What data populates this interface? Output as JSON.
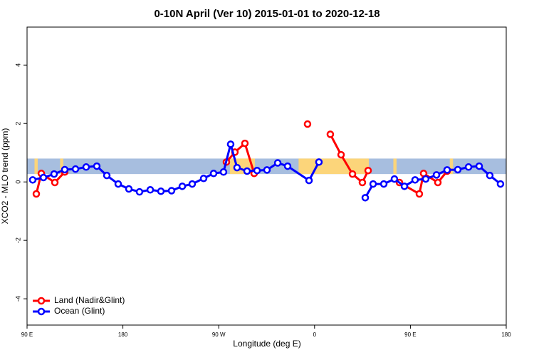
{
  "chart_data": {
    "type": "line",
    "title": "0-10N April (Ver 10)   2015-01-01 to 2020-12-18",
    "x_label": "Longitude (deg E)",
    "y_label": "XCO2 - MLO trend (ppm)",
    "xlim": [
      90,
      540
    ],
    "ylim": [
      -4.9,
      5.3
    ],
    "xticks": [
      {
        "value": 90,
        "label": "90 E"
      },
      {
        "value": 180,
        "label": "180"
      },
      {
        "value": 270,
        "label": "90 W"
      },
      {
        "value": 360,
        "label": "0"
      },
      {
        "value": 450,
        "label": "90 E"
      },
      {
        "value": 540,
        "label": "180"
      }
    ],
    "yticks": [
      -4,
      -2,
      0,
      2,
      4
    ],
    "band": [
      0.27,
      0.8
    ],
    "band_color": "#a7bedf",
    "land_color": "#fcd57a",
    "land_x_ranges": [
      [
        280.5,
        304
      ],
      [
        345,
        411
      ],
      [
        97,
        100
      ],
      [
        121,
        124
      ],
      [
        434,
        437
      ],
      [
        487,
        490
      ]
    ],
    "legend": "bottom-left",
    "series": [
      {
        "name": "Land (Nadir&Glint)",
        "color": "#ff0000",
        "x": [
          98.7,
          103.4,
          116.1,
          125.4,
          200,
          277.2,
          285.2,
          294.6,
          303.3,
          330,
          353.4,
          365,
          374.8,
          384.9,
          395.6,
          404.9,
          410.3,
          425,
          439.7,
          458.4,
          462.4,
          475.8,
          484.5
        ],
        "values": [
          -0.41,
          0.29,
          -0.02,
          0.34,
          null,
          0.68,
          1.02,
          1.32,
          0.29,
          null,
          1.98,
          null,
          1.63,
          0.93,
          0.27,
          -0.02,
          0.39,
          null,
          -0.02,
          -0.41,
          0.29,
          -0.02,
          0.37
        ]
      },
      {
        "name": "Ocean (Glint)",
        "color": "#0000ff",
        "x": [
          95.3,
          105.4,
          115.4,
          125.4,
          135.5,
          145.5,
          155.5,
          164.9,
          175.6,
          185.6,
          195.6,
          205.7,
          215.7,
          225.7,
          235.8,
          245.1,
          255.8,
          265.2,
          274.5,
          281.2,
          287.2,
          296.6,
          306.0,
          315.3,
          325.4,
          334.7,
          354.8,
          364.1,
          385,
          407.6,
          415.0,
          425.0,
          435.0,
          444.4,
          454.4,
          464.4,
          474.5,
          484.5,
          494.5,
          504.6,
          514.6,
          524.6,
          534.6
        ],
        "values": [
          0.07,
          0.15,
          0.27,
          0.42,
          0.44,
          0.51,
          0.54,
          0.22,
          -0.07,
          -0.24,
          -0.34,
          -0.27,
          -0.32,
          -0.3,
          -0.15,
          -0.07,
          0.12,
          0.29,
          0.34,
          1.29,
          0.49,
          0.37,
          0.39,
          0.41,
          0.65,
          0.54,
          0.05,
          0.68,
          null,
          -0.54,
          -0.07,
          -0.07,
          0.1,
          -0.15,
          0.07,
          0.1,
          0.24,
          0.41,
          0.42,
          0.51,
          0.54,
          0.22,
          -0.07
        ]
      }
    ]
  }
}
